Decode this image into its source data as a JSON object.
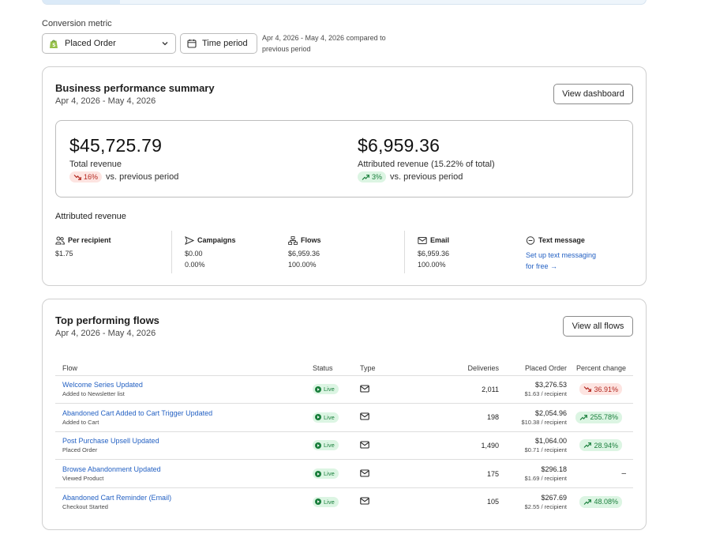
{
  "header": {
    "metric_label": "Conversion metric",
    "metric_select_value": "Placed Order",
    "time_period_button": "Time period",
    "period_note": "Apr 4, 2026 - May 4, 2026 compared to previous period"
  },
  "summary": {
    "title": "Business performance summary",
    "date_range": "Apr 4, 2026 - May 4, 2026",
    "view_dashboard_button": "View dashboard",
    "total_revenue": {
      "amount": "$45,725.79",
      "label": "Total revenue",
      "change": "16%",
      "change_direction": "down",
      "change_suffix": "vs. previous period"
    },
    "attributed_revenue": {
      "amount": "$6,959.36",
      "label": "Attributed revenue (15.22% of total)",
      "change": "3%",
      "change_direction": "up",
      "change_suffix": "vs. previous period"
    },
    "attributed_section_title": "Attributed revenue",
    "breakdown": {
      "per_recipient": {
        "label": "Per recipient",
        "value": "$1.75",
        "icon": "people-icon"
      },
      "campaigns": {
        "label": "Campaigns",
        "value": "$0.00",
        "share": "0.00%",
        "icon": "send-icon"
      },
      "flows": {
        "label": "Flows",
        "value": "$6,959.36",
        "share": "100.00%",
        "icon": "flow-icon"
      },
      "email": {
        "label": "Email",
        "value": "$6,959.36",
        "share": "100.00%",
        "icon": "mail-icon"
      },
      "text_message": {
        "label": "Text message",
        "link_line1": "Set up text messaging",
        "link_line2": "for free →",
        "icon": "chat-icon"
      }
    }
  },
  "flows": {
    "title": "Top performing flows",
    "date_range": "Apr 4, 2026 - May 4, 2026",
    "view_all_button": "View all flows",
    "columns": {
      "flow": "Flow",
      "status": "Status",
      "type": "Type",
      "deliveries": "Deliveries",
      "placed_order": "Placed Order",
      "percent_change": "Percent change"
    },
    "rows": [
      {
        "name": "Welcome Series Updated",
        "trigger": "Added to Newsletter list",
        "status": "Live",
        "deliveries": "2,011",
        "placed_order": "$3,276.53",
        "per_recipient": "$1.63 / recipient",
        "percent_change": "36.91%",
        "direction": "down"
      },
      {
        "name": "Abandoned Cart Added to Cart Trigger Updated",
        "trigger": "Added to Cart",
        "status": "Live",
        "deliveries": "198",
        "placed_order": "$2,054.96",
        "per_recipient": "$10.38 / recipient",
        "percent_change": "255.78%",
        "direction": "up"
      },
      {
        "name": "Post Purchase Upsell Updated",
        "trigger": "Placed Order",
        "status": "Live",
        "deliveries": "1,490",
        "placed_order": "$1,064.00",
        "per_recipient": "$0.71 / recipient",
        "percent_change": "28.94%",
        "direction": "up"
      },
      {
        "name": "Browse Abandonment Updated",
        "trigger": "Viewed Product",
        "status": "Live",
        "deliveries": "175",
        "placed_order": "$296.18",
        "per_recipient": "$1.69 / recipient",
        "percent_change": "–",
        "direction": "none"
      },
      {
        "name": "Abandoned Cart Reminder (Email)",
        "trigger": "Checkout Started",
        "status": "Live",
        "deliveries": "105",
        "placed_order": "$267.69",
        "per_recipient": "$2.55 / recipient",
        "percent_change": "48.08%",
        "direction": "up"
      }
    ]
  },
  "colors": {
    "link": "#2461c3",
    "positive": "#1a7f3c",
    "positive_bg": "#dcf5e3",
    "negative": "#b3261e",
    "negative_bg": "#fde4e1"
  }
}
